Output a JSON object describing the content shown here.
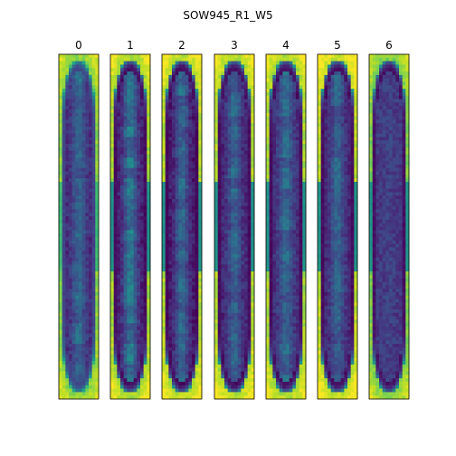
{
  "chart_data": {
    "type": "heatmap",
    "title": "SOW945_R1_W5",
    "colormap": "viridis",
    "axes_ticks": false,
    "panels": [
      {
        "label": "0",
        "interior_level": 0.12,
        "rim_level": 0.2,
        "background_level": 0.82,
        "center_streak_level": 0.4
      },
      {
        "label": "1",
        "interior_level": 0.08,
        "rim_level": 0.03,
        "background_level": 0.86,
        "center_streak_level": 0.48
      },
      {
        "label": "2",
        "interior_level": 0.06,
        "rim_level": 0.02,
        "background_level": 0.88,
        "center_streak_level": 0.42
      },
      {
        "label": "3",
        "interior_level": 0.1,
        "rim_level": 0.03,
        "background_level": 0.88,
        "center_streak_level": 0.38
      },
      {
        "label": "4",
        "interior_level": 0.12,
        "rim_level": 0.03,
        "background_level": 0.86,
        "center_streak_level": 0.4
      },
      {
        "label": "5",
        "interior_level": 0.1,
        "rim_level": 0.03,
        "background_level": 0.9,
        "center_streak_level": 0.38
      },
      {
        "label": "6",
        "interior_level": 0.16,
        "rim_level": 0.04,
        "background_level": 0.8,
        "center_streak_level": 0.2
      }
    ]
  }
}
